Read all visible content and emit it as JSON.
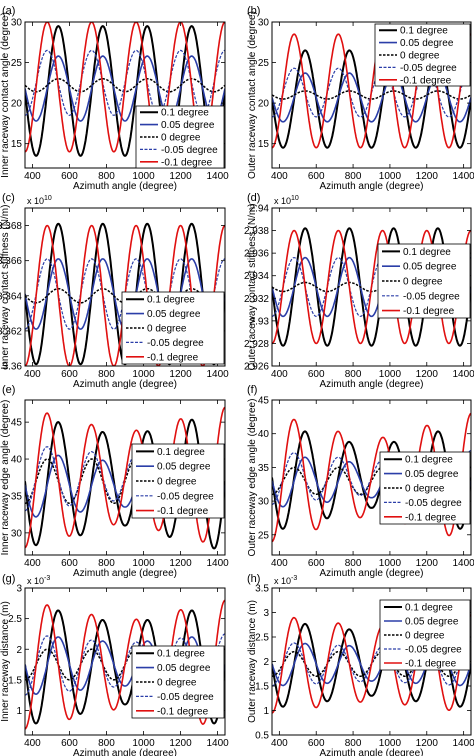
{
  "legend_labels": [
    "0.1 degree",
    "0.05 degree",
    "0 degree",
    "-0.05 degree",
    "-0.1 degree"
  ],
  "series_colors": [
    "#000000",
    "#2b3ea8",
    "#000000",
    "#2b3ea8",
    "#e01010"
  ],
  "series_dashed": [
    false,
    false,
    true,
    true,
    false
  ],
  "chart_data": [
    {
      "panel": "(a)",
      "type": "line",
      "ylabel": "Inner raceway contact angle (degree)",
      "xlabel": "Azimuth angle (degree)",
      "xlim": [
        360,
        1440
      ],
      "ylim": [
        12,
        30
      ],
      "yexp": "",
      "xticks": [
        400,
        600,
        800,
        1000,
        1200,
        1400
      ],
      "yticks": [
        15,
        20,
        25,
        30
      ],
      "legend": "bottom-right",
      "series": [
        {
          "name": "0.1 degree",
          "center": 21.5,
          "amplitude": [
            8.0,
            8.0,
            8.0
          ],
          "phase": 60
        },
        {
          "name": "0.05 degree",
          "center": 21.8,
          "amplitude": [
            4.0,
            4.0,
            4.0
          ],
          "phase": 60
        },
        {
          "name": "0 degree",
          "center": 22.2,
          "amplitude": [
            0.8,
            0.8,
            0.8
          ],
          "phase": 60
        },
        {
          "name": "-0.05 degree",
          "center": 22.5,
          "amplitude": [
            4.0,
            4.0,
            4.0
          ],
          "phase": 240
        },
        {
          "name": "-0.1 degree",
          "center": 22.0,
          "amplitude": [
            8.0,
            8.0,
            8.0
          ],
          "phase": 240
        }
      ]
    },
    {
      "panel": "(b)",
      "type": "line",
      "ylabel": "Outer raceway contact angle (degree)",
      "xlabel": "Azimuth angle (degree)",
      "xlim": [
        360,
        1440
      ],
      "ylim": [
        12,
        30
      ],
      "yexp": "",
      "xticks": [
        400,
        600,
        800,
        1000,
        1200,
        1400
      ],
      "yticks": [
        15,
        20,
        25,
        30
      ],
      "legend": "top-right",
      "series": [
        {
          "name": "0.1 degree",
          "center": 20.5,
          "amplitude": [
            6.0,
            6.0,
            6.0
          ],
          "phase": 60
        },
        {
          "name": "0.05 degree",
          "center": 20.7,
          "amplitude": [
            3.0,
            3.0,
            3.0
          ],
          "phase": 60
        },
        {
          "name": "0 degree",
          "center": 21.0,
          "amplitude": [
            0.5,
            0.5,
            0.5
          ],
          "phase": 60
        },
        {
          "name": "-0.05 degree",
          "center": 21.3,
          "amplitude": [
            3.0,
            3.0,
            3.0
          ],
          "phase": 240
        },
        {
          "name": "-0.1 degree",
          "center": 21.5,
          "amplitude": [
            7.0,
            7.0,
            7.0
          ],
          "phase": 240
        }
      ]
    },
    {
      "panel": "(c)",
      "type": "line",
      "ylabel": "Inner raceway contact stiffness (N/m)",
      "xlabel": "Azimuth angle (degree)",
      "xlim": [
        360,
        1440
      ],
      "ylim": [
        3.36,
        3.369
      ],
      "yexp": "x 10",
      "yexp_power": "10",
      "xticks": [
        400,
        600,
        800,
        1000,
        1200,
        1400
      ],
      "yticks": [
        3.36,
        3.362,
        3.364,
        3.366,
        3.368
      ],
      "legend": "bottom-right",
      "series": [
        {
          "name": "0.1 degree",
          "center": 3.3641,
          "amplitude": [
            0.004,
            0.004,
            0.004
          ],
          "phase": 60
        },
        {
          "name": "0.05 degree",
          "center": 3.3641,
          "amplitude": [
            0.002,
            0.002,
            0.002
          ],
          "phase": 60
        },
        {
          "name": "0 degree",
          "center": 3.364,
          "amplitude": [
            0.0004,
            0.0004,
            0.0004
          ],
          "phase": 60
        },
        {
          "name": "-0.05 degree",
          "center": 3.3641,
          "amplitude": [
            0.002,
            0.002,
            0.002
          ],
          "phase": 240
        },
        {
          "name": "-0.1 degree",
          "center": 3.364,
          "amplitude": [
            0.004,
            0.004,
            0.004
          ],
          "phase": 240
        }
      ]
    },
    {
      "panel": "(d)",
      "type": "line",
      "ylabel": "Outer raceway contact stiffness (N/m)",
      "xlabel": "Azimuth angle (degree)",
      "xlim": [
        360,
        1440
      ],
      "ylim": [
        2.926,
        2.94
      ],
      "yexp": "x 10",
      "yexp_power": "10",
      "xticks": [
        400,
        600,
        800,
        1000,
        1200,
        1400
      ],
      "yticks": [
        2.926,
        2.928,
        2.93,
        2.932,
        2.934,
        2.936,
        2.938,
        2.94
      ],
      "legend": "right",
      "series": [
        {
          "name": "0.1 degree",
          "center": 2.933,
          "amplitude": [
            0.0052,
            0.0052,
            0.0052
          ],
          "phase": 60
        },
        {
          "name": "0.05 degree",
          "center": 2.933,
          "amplitude": [
            0.0026,
            0.0026,
            0.0026
          ],
          "phase": 60
        },
        {
          "name": "0 degree",
          "center": 2.933,
          "amplitude": [
            0.0004,
            0.0004,
            0.0004
          ],
          "phase": 60
        },
        {
          "name": "-0.05 degree",
          "center": 2.933,
          "amplitude": [
            0.0026,
            0.0026,
            0.0026
          ],
          "phase": 240
        },
        {
          "name": "-0.1 degree",
          "center": 2.933,
          "amplitude": [
            0.005,
            0.005,
            0.005
          ],
          "phase": 240
        }
      ]
    },
    {
      "panel": "(e)",
      "type": "line",
      "ylabel": "Inner raceway edge angle (degree)",
      "xlabel": "Azimuth angle (degree)",
      "xlim": [
        360,
        1440
      ],
      "ylim": [
        27,
        48
      ],
      "yexp": "",
      "xticks": [
        400,
        600,
        800,
        1000,
        1200,
        1400
      ],
      "yticks": [
        30,
        35,
        40,
        45
      ],
      "legend": "right",
      "series": [
        {
          "name": "0.1 degree",
          "center": 37.0,
          "amplitude": [
            9.0,
            6.0,
            9.5
          ],
          "phase": 60
        },
        {
          "name": "0.05 degree",
          "center": 36.5,
          "amplitude": [
            4.5,
            3.0,
            4.5
          ],
          "phase": 60
        },
        {
          "name": "0 degree",
          "center": 37.0,
          "amplitude": [
            3.0,
            3.0,
            3.0
          ],
          "phase": 240
        },
        {
          "name": "-0.05 degree",
          "center": 37.5,
          "amplitude": [
            4.5,
            3.0,
            4.5
          ],
          "phase": 240
        },
        {
          "name": "-0.1 degree",
          "center": 37.5,
          "amplitude": [
            9.5,
            6.0,
            9.5
          ],
          "phase": 240
        }
      ]
    },
    {
      "panel": "(f)",
      "type": "line",
      "ylabel": "Outer raceway edge angle (degree)",
      "xlabel": "Azimuth angle (degree)",
      "xlim": [
        360,
        1440
      ],
      "ylim": [
        22,
        45
      ],
      "yexp": "",
      "xticks": [
        400,
        600,
        800,
        1000,
        1200,
        1400
      ],
      "yticks": [
        25,
        30,
        35,
        40,
        45
      ],
      "legend": "bottom-right",
      "series": [
        {
          "name": "0.1 degree",
          "center": 33.5,
          "amplitude": [
            8.0,
            4.5,
            8.0
          ],
          "phase": 60
        },
        {
          "name": "0.05 degree",
          "center": 33.0,
          "amplitude": [
            4.0,
            2.5,
            4.0
          ],
          "phase": 60
        },
        {
          "name": "0 degree",
          "center": 33.0,
          "amplitude": [
            2.0,
            2.0,
            2.0
          ],
          "phase": 240
        },
        {
          "name": "-0.05 degree",
          "center": 33.5,
          "amplitude": [
            4.0,
            2.5,
            4.0
          ],
          "phase": 240
        },
        {
          "name": "-0.1 degree",
          "center": 33.5,
          "amplitude": [
            9.5,
            5.5,
            9.5
          ],
          "phase": 240
        }
      ]
    },
    {
      "panel": "(g)",
      "type": "line",
      "ylabel": "Inner raceway distance (m)",
      "xlabel": "Azimuth angle (degree)",
      "xlim": [
        360,
        1440
      ],
      "ylim": [
        0.6,
        3.0
      ],
      "yexp": "x 10",
      "yexp_power": "-3",
      "xticks": [
        400,
        600,
        800,
        1000,
        1200,
        1400
      ],
      "yticks": [
        1,
        1.5,
        2,
        2.5,
        3
      ],
      "legend": "right",
      "series": [
        {
          "name": "0.1 degree",
          "center": 1.75,
          "amplitude": [
            1.0,
            0.65,
            1.0
          ],
          "phase": 60
        },
        {
          "name": "0.05 degree",
          "center": 1.75,
          "amplitude": [
            0.5,
            0.35,
            0.5
          ],
          "phase": 60
        },
        {
          "name": "0 degree",
          "center": 1.75,
          "amplitude": [
            0.25,
            0.25,
            0.25
          ],
          "phase": 240
        },
        {
          "name": "-0.05 degree",
          "center": 1.75,
          "amplitude": [
            0.5,
            0.35,
            0.5
          ],
          "phase": 240
        },
        {
          "name": "-0.1 degree",
          "center": 1.75,
          "amplitude": [
            1.05,
            0.7,
            1.05
          ],
          "phase": 240
        }
      ]
    },
    {
      "panel": "(h)",
      "type": "line",
      "ylabel": "Outer raceway distance (m)",
      "xlabel": "Azimuth angle (degree)",
      "xlim": [
        360,
        1440
      ],
      "ylim": [
        0.5,
        3.5
      ],
      "yexp": "x 10",
      "yexp_power": "-3",
      "xticks": [
        400,
        600,
        800,
        1000,
        1200,
        1400
      ],
      "yticks": [
        0.5,
        1,
        1.5,
        2,
        2.5,
        3,
        3.5
      ],
      "legend": "top-right",
      "series": [
        {
          "name": "0.1 degree",
          "center": 1.95,
          "amplitude": [
            0.9,
            0.65,
            0.9
          ],
          "phase": 60
        },
        {
          "name": "0.05 degree",
          "center": 1.95,
          "amplitude": [
            0.45,
            0.35,
            0.45
          ],
          "phase": 60
        },
        {
          "name": "0 degree",
          "center": 1.95,
          "amplitude": [
            0.25,
            0.25,
            0.25
          ],
          "phase": 240
        },
        {
          "name": "-0.05 degree",
          "center": 1.95,
          "amplitude": [
            0.45,
            0.35,
            0.45
          ],
          "phase": 240
        },
        {
          "name": "-0.1 degree",
          "center": 1.95,
          "amplitude": [
            1.0,
            0.75,
            1.0
          ],
          "phase": 240
        }
      ]
    }
  ]
}
